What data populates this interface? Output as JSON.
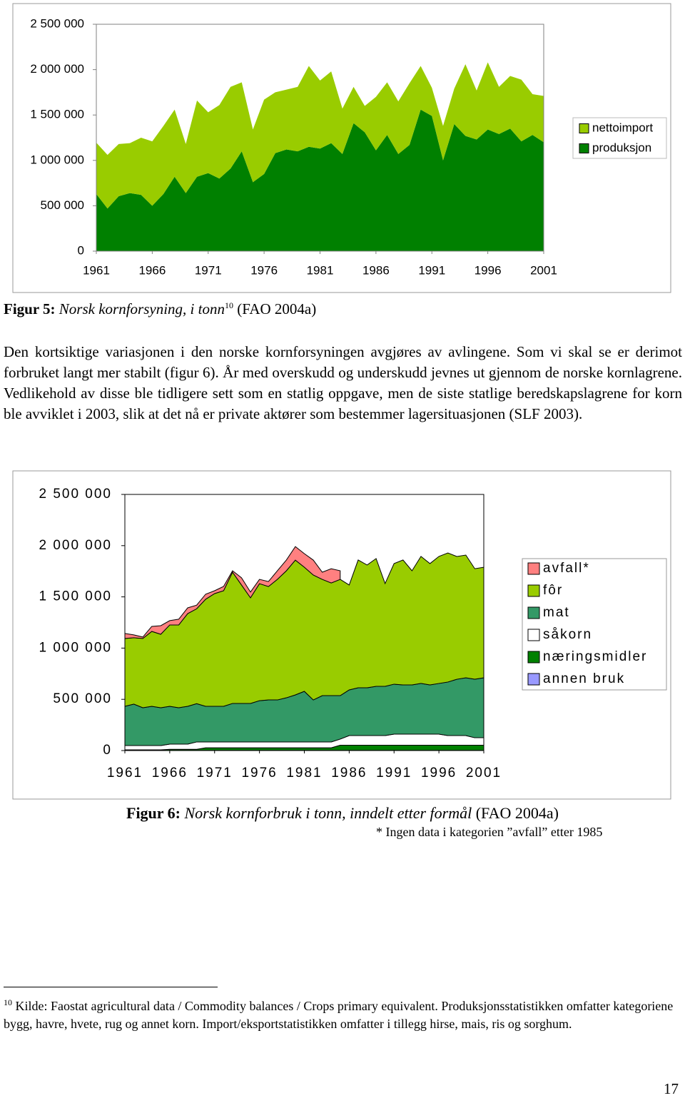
{
  "chart_data": [
    {
      "type": "stacked_area",
      "x": [
        1961,
        1962,
        1963,
        1964,
        1965,
        1966,
        1967,
        1968,
        1969,
        1970,
        1971,
        1972,
        1973,
        1974,
        1975,
        1976,
        1977,
        1978,
        1979,
        1980,
        1981,
        1982,
        1983,
        1984,
        1985,
        1986,
        1987,
        1988,
        1989,
        1990,
        1991,
        1992,
        1993,
        1994,
        1995,
        1996,
        1997,
        1998,
        1999,
        2000,
        2001
      ],
      "series": [
        {
          "name": "produksjon",
          "color": "#008000",
          "values": [
            629000,
            470000,
            605000,
            640000,
            620000,
            500000,
            630000,
            820000,
            640000,
            820000,
            860000,
            800000,
            910000,
            1100000,
            760000,
            850000,
            1080000,
            1120000,
            1100000,
            1150000,
            1130000,
            1190000,
            1070000,
            1410000,
            1310000,
            1110000,
            1280000,
            1070000,
            1170000,
            1560000,
            1490000,
            1000000,
            1400000,
            1270000,
            1230000,
            1340000,
            1290000,
            1350000,
            1210000,
            1280000,
            1200000
          ]
        },
        {
          "name": "nettoimport",
          "color": "#99cc00",
          "values": [
            566000,
            590000,
            575000,
            550000,
            630000,
            710000,
            750000,
            740000,
            540000,
            840000,
            670000,
            810000,
            900000,
            760000,
            580000,
            820000,
            670000,
            660000,
            710000,
            890000,
            750000,
            790000,
            500000,
            400000,
            290000,
            590000,
            580000,
            580000,
            680000,
            480000,
            310000,
            380000,
            390000,
            790000,
            540000,
            740000,
            520000,
            580000,
            680000,
            450000,
            510000
          ]
        }
      ],
      "xlim": [
        1961,
        2001
      ],
      "xticks": [
        1961,
        1966,
        1971,
        1976,
        1981,
        1986,
        1991,
        1996,
        2001
      ],
      "ylim": [
        0,
        2500000
      ],
      "yticks": [
        0,
        {
          "value": 500000,
          "label": "500 000"
        },
        {
          "value": 1000000,
          "label": "1 000 000"
        },
        {
          "value": 1500000,
          "label": "1 500 000"
        },
        {
          "value": 2000000,
          "label": "2 000 000"
        },
        {
          "value": 2500000,
          "label": "2 500 000"
        }
      ],
      "grid": false,
      "legend": "right"
    },
    {
      "type": "stacked_area",
      "x": [
        1961,
        1962,
        1963,
        1964,
        1965,
        1966,
        1967,
        1968,
        1969,
        1970,
        1971,
        1972,
        1973,
        1974,
        1975,
        1976,
        1977,
        1978,
        1979,
        1980,
        1981,
        1982,
        1983,
        1984,
        1985,
        1986,
        1987,
        1988,
        1989,
        1990,
        1991,
        1992,
        1993,
        1994,
        1995,
        1996,
        1997,
        1998,
        1999,
        2000,
        2001
      ],
      "series": [
        {
          "name": "annen bruk",
          "color": "#9999ff",
          "values": [
            2000,
            2000,
            2000,
            2000,
            2000,
            2000,
            2000,
            2000,
            2000,
            2000,
            2000,
            2000,
            2000,
            2000,
            2000,
            2000,
            2000,
            2000,
            2000,
            2000,
            2000,
            2000,
            2000,
            2000,
            2000,
            2000,
            2000,
            2000,
            2000,
            2000,
            2000,
            2000,
            2000,
            2000,
            2000,
            2000,
            2000,
            2000,
            2000,
            2000,
            2000
          ]
        },
        {
          "name": "næringsmidler",
          "color": "#008000",
          "values": [
            5000,
            5000,
            5000,
            5000,
            5000,
            10000,
            10000,
            10000,
            10000,
            25000,
            25000,
            25000,
            25000,
            25000,
            25000,
            25000,
            25000,
            25000,
            25000,
            25000,
            25000,
            25000,
            25000,
            25000,
            50000,
            50000,
            50000,
            50000,
            50000,
            50000,
            50000,
            50000,
            50000,
            50000,
            50000,
            50000,
            50000,
            50000,
            50000,
            50000,
            50000
          ]
        },
        {
          "name": "såkorn",
          "color": "#ffffff",
          "values": [
            42000,
            42000,
            42000,
            42000,
            42000,
            51000,
            51000,
            51000,
            72000,
            57000,
            57000,
            57000,
            57000,
            57000,
            57000,
            57000,
            57000,
            57000,
            57000,
            57000,
            57000,
            57000,
            57000,
            57000,
            60000,
            94000,
            94000,
            94000,
            94000,
            94000,
            108000,
            108000,
            108000,
            108000,
            108000,
            108000,
            94000,
            94000,
            94000,
            73000,
            73000
          ]
        },
        {
          "name": "mat",
          "color": "#339966",
          "values": [
            383000,
            404000,
            369000,
            383000,
            369000,
            369000,
            355000,
            369000,
            374000,
            348000,
            348000,
            348000,
            376000,
            376000,
            376000,
            403000,
            410000,
            410000,
            431000,
            459000,
            494000,
            410000,
            452000,
            452000,
            424000,
            446000,
            467000,
            467000,
            481000,
            481000,
            488000,
            481000,
            481000,
            495000,
            481000,
            495000,
            523000,
            550000,
            564000,
            571000,
            585000
          ]
        },
        {
          "name": "fôr",
          "color": "#99cc00",
          "values": [
            662000,
            648000,
            676000,
            731000,
            717000,
            794000,
            808000,
            905000,
            926000,
            1045000,
            1100000,
            1128000,
            1281000,
            1156000,
            1031000,
            1142000,
            1107000,
            1177000,
            1240000,
            1316000,
            1212000,
            1219000,
            1135000,
            1100000,
            1135000,
            1024000,
            1247000,
            1198000,
            1247000,
            1003000,
            1177000,
            1219000,
            1114000,
            1240000,
            1184000,
            1240000,
            1260000,
            1198000,
            1198000,
            1079000,
            1079000
          ]
        },
        {
          "name": "avfall*",
          "color": "#ff8080",
          "values": [
            49000,
            28000,
            14000,
            49000,
            84000,
            42000,
            56000,
            56000,
            35000,
            49000,
            28000,
            42000,
            14000,
            70000,
            56000,
            42000,
            49000,
            84000,
            105000,
            132000,
            132000,
            146000,
            70000,
            139000,
            84000,
            null,
            null,
            null,
            null,
            null,
            null,
            null,
            null,
            null,
            null,
            null,
            null,
            null,
            null,
            null,
            null
          ]
        }
      ],
      "xlim": [
        1961,
        2001
      ],
      "xticks": [
        1961,
        1966,
        1971,
        1976,
        1981,
        1986,
        1991,
        1996,
        2001
      ],
      "ylim": [
        0,
        2500000
      ],
      "yticks": [
        0,
        {
          "value": 500000,
          "label": "500 000"
        },
        {
          "value": 1000000,
          "label": "1 000 000"
        },
        {
          "value": 1500000,
          "label": "1 500 000"
        },
        {
          "value": 2000000,
          "label": "2 000 000"
        },
        {
          "value": 2500000,
          "label": "2 500 000"
        }
      ],
      "grid": false,
      "legend": "right"
    }
  ],
  "document": {
    "figure5_caption": {
      "label": "Figur 5:",
      "title": "Norsk kornforsyning, i tonn",
      "footnote_ref": "10",
      "source": "(FAO 2004a)"
    },
    "paragraph": "Den kortsiktige variasjonen i den norske kornforsyningen avgjøres av avlingene. Som vi skal se er derimot forbruket langt mer stabilt (figur 6). År med overskudd og underskudd jevnes ut gjennom de norske kornlagrene. Vedlikehold av disse ble tidligere sett som en statlig oppgave, men de siste statlige beredskapslagrene for korn ble avviklet i 2003, slik at det nå er private aktører som bestemmer lagersituasjonen (SLF 2003).",
    "figure6_caption": {
      "label": "Figur 6:",
      "title": "Norsk kornforbruk i tonn, inndelt etter formål",
      "source": "(FAO 2004a)"
    },
    "figure6_note": "* Ingen data i kategorien ”avfall” etter 1985",
    "footnote": {
      "marker": "10",
      "text": "Kilde: Faostat agricultural data / Commodity balances / Crops primary equivalent. Produksjonsstatistikken omfatter kategoriene bygg, havre, hvete, rug og annet korn. Import/eksportstatistikken omfatter i tillegg hirse, mais, ris og sorghum."
    },
    "page_number": "17"
  }
}
